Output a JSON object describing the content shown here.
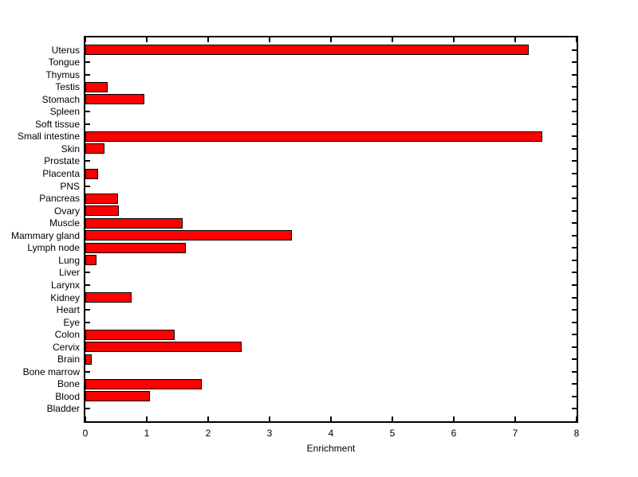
{
  "chart_data": {
    "type": "bar",
    "orientation": "horizontal",
    "title": "",
    "xlabel": "Enrichment",
    "ylabel": "",
    "xlim": [
      0,
      8
    ],
    "xticks": [
      0,
      1,
      2,
      3,
      4,
      5,
      6,
      7,
      8
    ],
    "grid": false,
    "legend": null,
    "bar_color": "#FF0000",
    "bar_edge_color": "#000000",
    "axis_color": "#000000",
    "background_color": "#FFFFFF",
    "categories": [
      "Uterus",
      "Tongue",
      "Thymus",
      "Testis",
      "Stomach",
      "Spleen",
      "Soft tissue",
      "Small intestine",
      "Skin",
      "Prostate",
      "Placenta",
      "PNS",
      "Pancreas",
      "Ovary",
      "Muscle",
      "Mammary gland",
      "Lymph node",
      "Lung",
      "Liver",
      "Larynx",
      "Kidney",
      "Heart",
      "Eye",
      "Colon",
      "Cervix",
      "Brain",
      "Bone marrow",
      "Bone",
      "Blood",
      "Bladder"
    ],
    "values": [
      7.22,
      0,
      0,
      0.36,
      0.96,
      0,
      0,
      7.44,
      0.31,
      0,
      0.21,
      0,
      0.53,
      0.54,
      1.58,
      3.37,
      1.63,
      0.18,
      0,
      0,
      0.75,
      0,
      0,
      1.45,
      2.55,
      0.1,
      0,
      1.9,
      1.05,
      0
    ]
  }
}
